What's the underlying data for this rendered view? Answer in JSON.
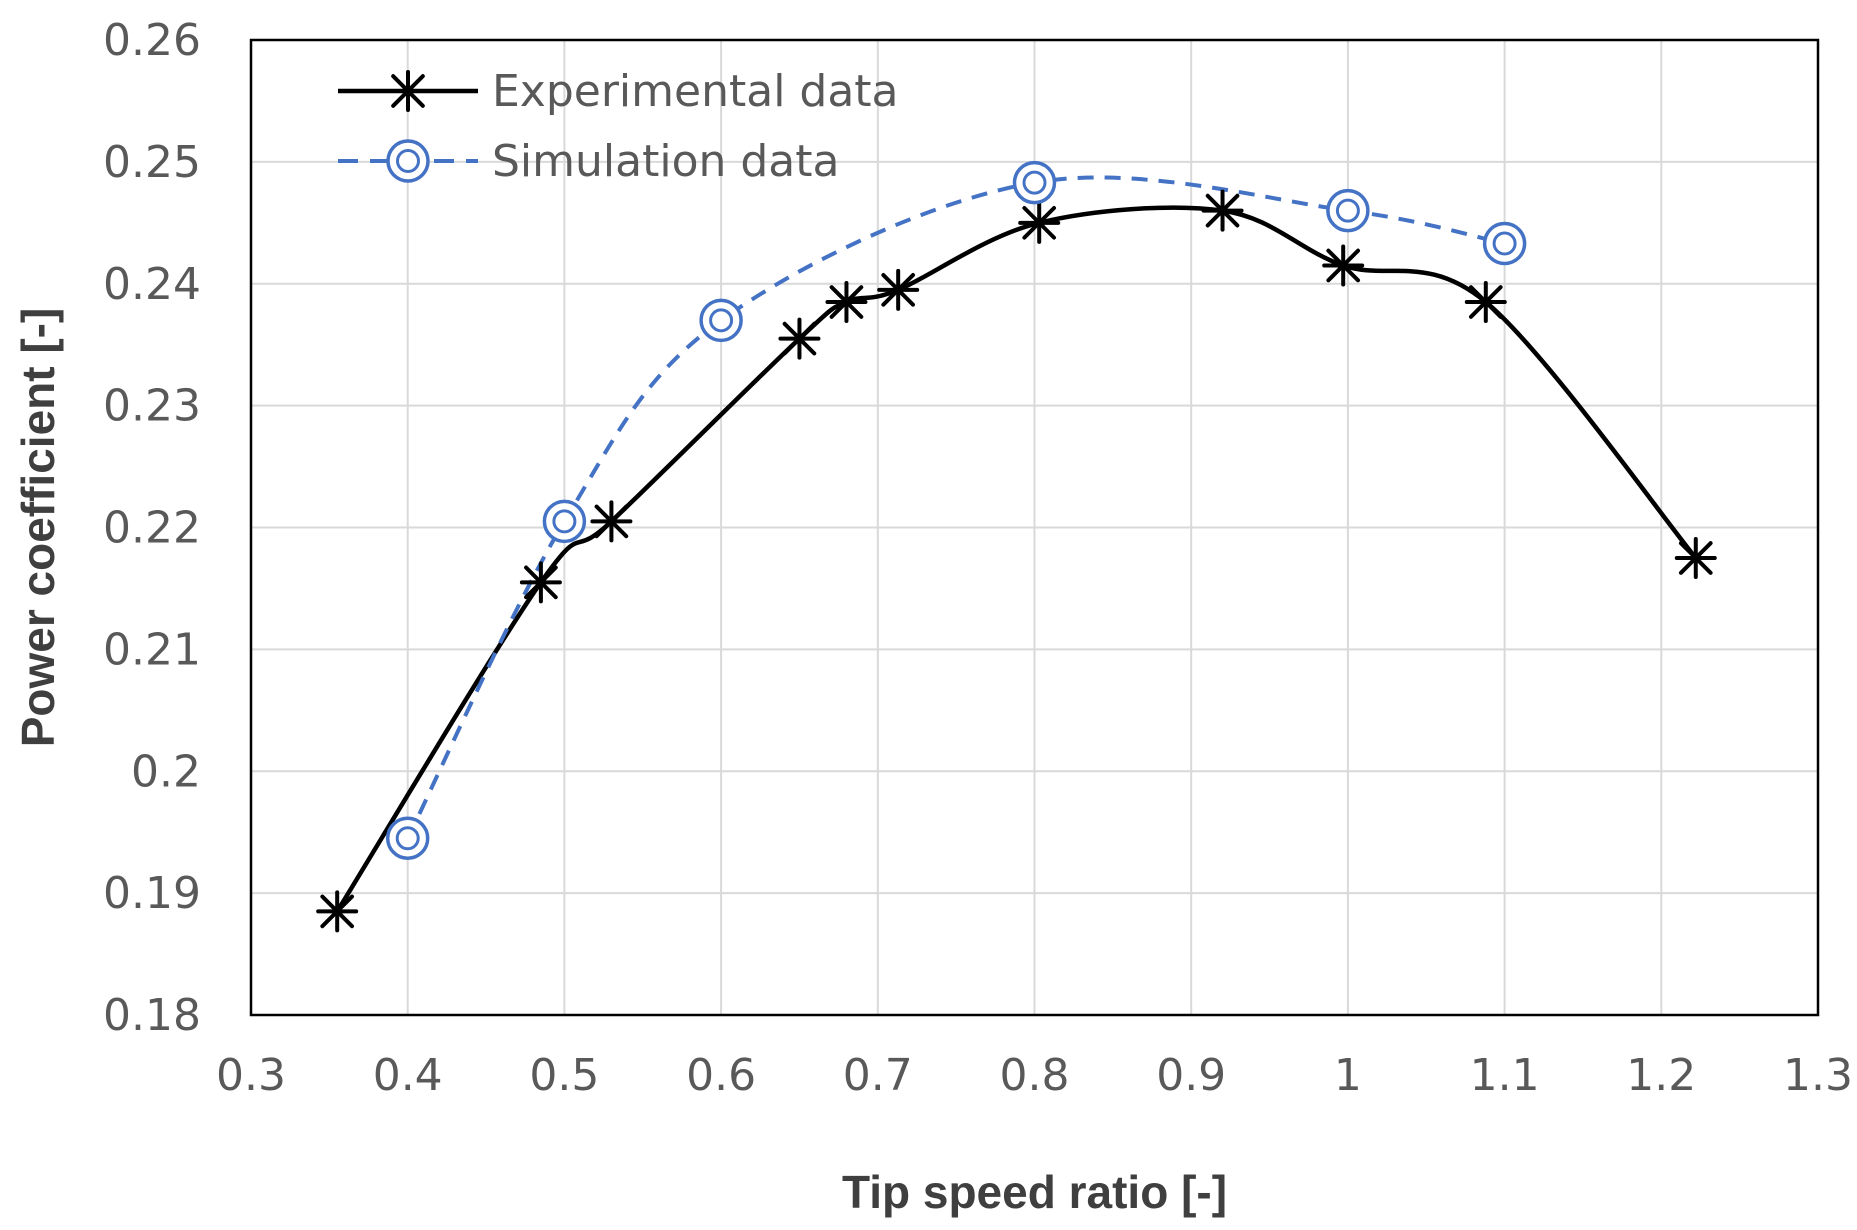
{
  "chart_data": {
    "type": "line",
    "xlabel": "Tip speed ratio [-]",
    "ylabel": "Power coefficient [-]",
    "xlim": [
      0.3,
      1.3
    ],
    "ylim": [
      0.18,
      0.26
    ],
    "x_ticks": [
      0.3,
      0.4,
      0.5,
      0.6,
      0.7,
      0.8,
      0.9,
      1.0,
      1.1,
      1.2,
      1.3
    ],
    "x_tick_labels": [
      "0.3",
      "0.4",
      "0.5",
      "0.6",
      "0.7",
      "0.8",
      "0.9",
      "1",
      "1.1",
      "1.2",
      "1.3"
    ],
    "y_ticks": [
      0.18,
      0.19,
      0.2,
      0.21,
      0.22,
      0.23,
      0.24,
      0.25,
      0.26
    ],
    "y_tick_labels": [
      "0.18",
      "0.19",
      "0.2",
      "0.21",
      "0.22",
      "0.23",
      "0.24",
      "0.25",
      "0.26"
    ],
    "grid": true,
    "legend_position": "top-left",
    "series": [
      {
        "name": "Experimental data",
        "color": "#000000",
        "line_style": "solid",
        "marker": "asterisk",
        "x": [
          0.355,
          0.485,
          0.53,
          0.65,
          0.68,
          0.713,
          0.803,
          0.92,
          0.997,
          1.088,
          1.222
        ],
        "y": [
          0.1885,
          0.2155,
          0.2205,
          0.2355,
          0.2385,
          0.2395,
          0.245,
          0.246,
          0.2415,
          0.2385,
          0.2175
        ]
      },
      {
        "name": "Simulation data",
        "color": "#4472c4",
        "line_style": "dashed",
        "marker": "double-circle",
        "x": [
          0.4,
          0.5,
          0.6,
          0.8,
          1.0,
          1.1
        ],
        "y": [
          0.1945,
          0.2205,
          0.237,
          0.2483,
          0.246,
          0.2433
        ]
      }
    ]
  }
}
